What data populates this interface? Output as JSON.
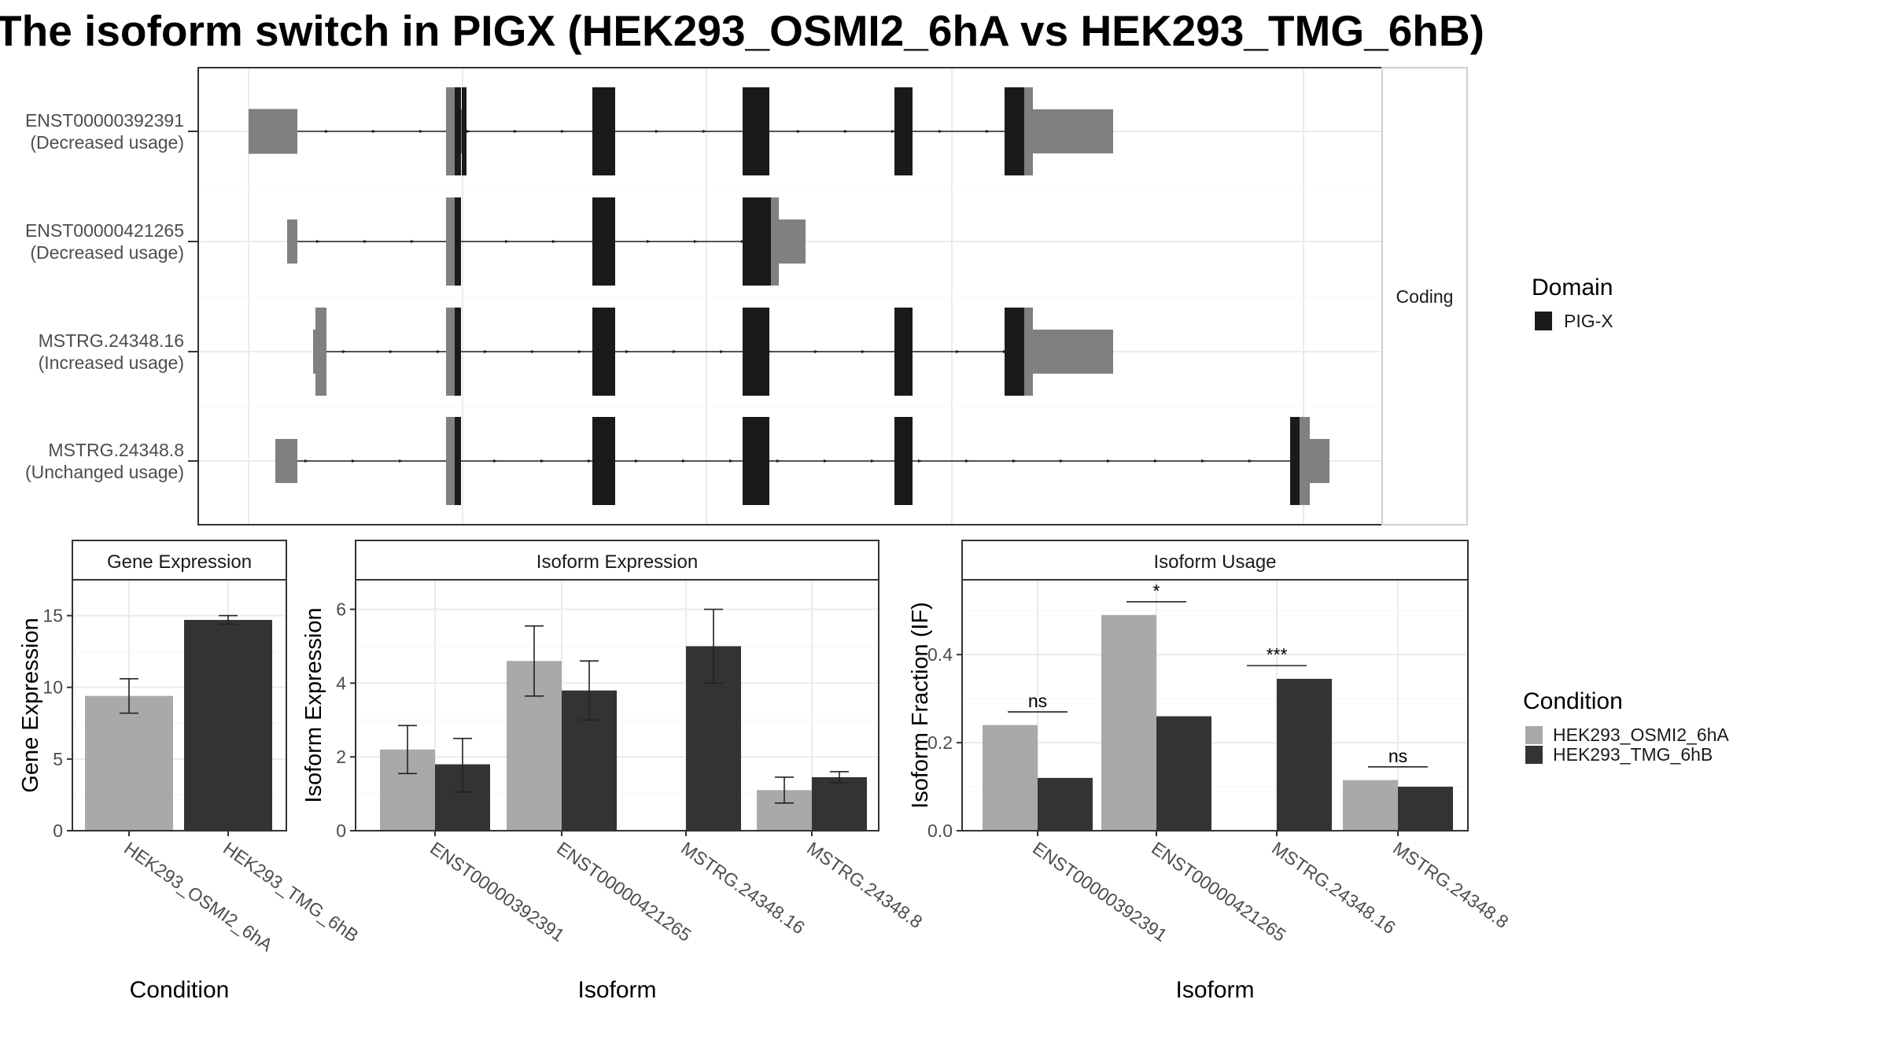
{
  "title": "The isoform switch in PIGX (HEK293_OSMI2_6hA vs HEK293_TMG_6hB)",
  "colors": {
    "cond_a": "#a9a9a9",
    "cond_b": "#333333",
    "utr": "#808080",
    "domain": "#1a1a1a",
    "grid": "#ebebeb",
    "panel_border": "#333333"
  },
  "structure": {
    "strip_label": "Coding",
    "transcripts": [
      {
        "id": "ENST00000392391",
        "usage": "(Decreased usage)"
      },
      {
        "id": "ENST00000421265",
        "usage": "(Decreased usage)"
      },
      {
        "id": "MSTRG.24348.16",
        "usage": "(Increased usage)"
      },
      {
        "id": "MSTRG.24348.8",
        "usage": "(Unchanged usage)"
      }
    ],
    "legend": {
      "title": "Domain",
      "items": [
        {
          "label": "PIG-X",
          "color": "#1a1a1a"
        }
      ]
    }
  },
  "chart_data": [
    {
      "type": "bar",
      "panel": "Gene Expression",
      "xlabel": "Condition",
      "ylabel": "Gene Expression",
      "ylim": [
        0,
        17.5
      ],
      "yticks": [
        0,
        5,
        10,
        15
      ],
      "categories": [
        "HEK293_OSMI2_6hA",
        "HEK293_TMG_6hB"
      ],
      "values": [
        9.4,
        14.7
      ],
      "errors": [
        [
          8.2,
          10.6
        ],
        [
          14.4,
          15.0
        ]
      ]
    },
    {
      "type": "bar",
      "panel": "Isoform Expression",
      "xlabel": "Isoform",
      "ylabel": "Isoform Expression",
      "ylim": [
        0,
        6.8
      ],
      "yticks": [
        0,
        2,
        4,
        6
      ],
      "categories": [
        "ENST00000392391",
        "ENST00000421265",
        "MSTRG.24348.16",
        "MSTRG.24348.8"
      ],
      "series": [
        {
          "name": "HEK293_OSMI2_6hA",
          "values": [
            2.2,
            4.6,
            0.0,
            1.1
          ],
          "errors": [
            [
              1.55,
              2.85
            ],
            [
              3.65,
              5.55
            ],
            [
              0.0,
              0.0
            ],
            [
              0.75,
              1.45
            ]
          ]
        },
        {
          "name": "HEK293_TMG_6hB",
          "values": [
            1.8,
            3.8,
            5.0,
            1.45
          ],
          "errors": [
            [
              1.05,
              2.5
            ],
            [
              3.0,
              4.6
            ],
            [
              4.0,
              6.0
            ],
            [
              1.3,
              1.6
            ]
          ]
        }
      ]
    },
    {
      "type": "bar",
      "panel": "Isoform Usage",
      "xlabel": "Isoform",
      "ylabel": "Isoform Fraction (IF)",
      "ylim": [
        0,
        0.57
      ],
      "yticks": [
        0.0,
        0.2,
        0.4
      ],
      "categories": [
        "ENST00000392391",
        "ENST00000421265",
        "MSTRG.24348.16",
        "MSTRG.24348.8"
      ],
      "series": [
        {
          "name": "HEK293_OSMI2_6hA",
          "values": [
            0.24,
            0.49,
            0.0,
            0.115
          ]
        },
        {
          "name": "HEK293_TMG_6hB",
          "values": [
            0.12,
            0.26,
            0.345,
            0.1
          ]
        }
      ],
      "significance": [
        "ns",
        "*",
        "***",
        "ns"
      ]
    }
  ],
  "condition_legend": {
    "title": "Condition",
    "items": [
      "HEK293_OSMI2_6hA",
      "HEK293_TMG_6hB"
    ]
  }
}
